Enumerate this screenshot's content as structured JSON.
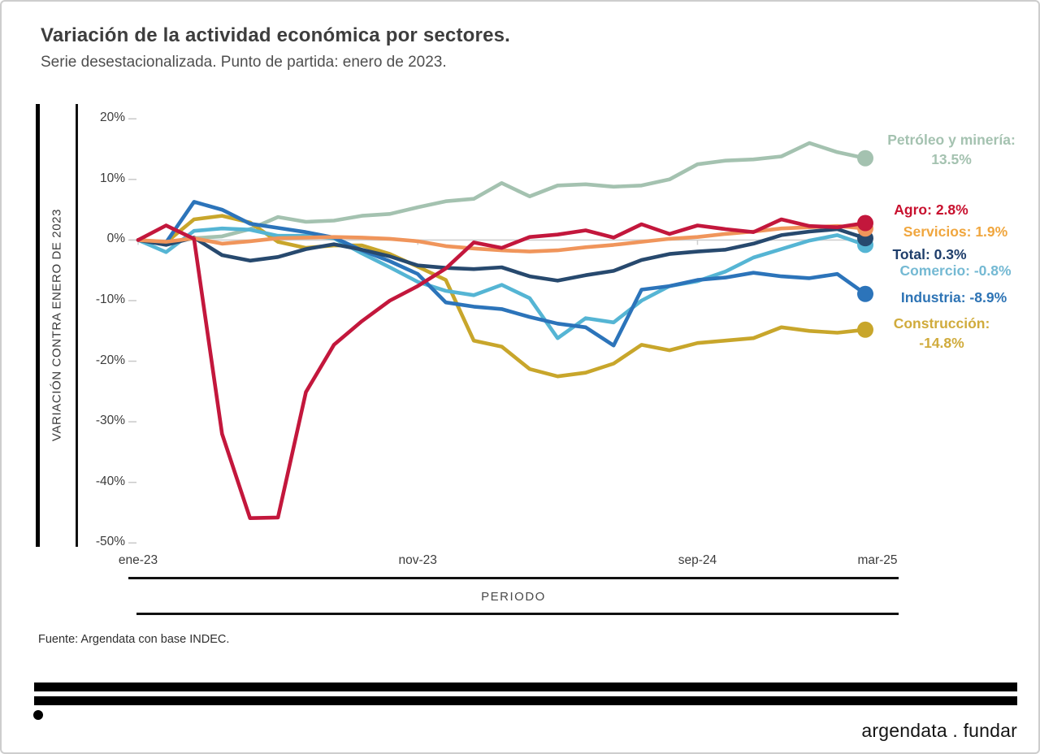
{
  "header": {
    "title": "Variación de la actividad económica por sectores.",
    "subtitle": "Serie desestacionalizada. Punto de partida: enero de 2023."
  },
  "chart_data": {
    "type": "line",
    "title": "Variación de la actividad económica por sectores.",
    "subtitle": "Serie desestacionalizada. Punto de partida: enero de 2023.",
    "ylabel": "VARIACIÓN CONTRA ENERO DE 2023",
    "xlabel": "PERIODO",
    "ylim": [
      -50,
      20
    ],
    "grid": "only zero baseline",
    "legend_position": "right end-of-line annotations",
    "y_ticks": [
      "20%",
      "10%",
      "0%",
      "-10%",
      "-20%",
      "-30%",
      "-40%",
      "-50%"
    ],
    "y_tick_values": [
      20,
      10,
      0,
      -10,
      -20,
      -30,
      -40,
      -50
    ],
    "x_tick_labels": [
      "ene-23",
      "nov-23",
      "sep-24",
      "mar-25"
    ],
    "x_tick_positions": [
      0,
      10,
      20,
      26
    ],
    "categories": [
      "ene-23",
      "feb-23",
      "mar-23",
      "abr-23",
      "may-23",
      "jun-23",
      "jul-23",
      "ago-23",
      "sep-23",
      "oct-23",
      "nov-23",
      "dic-23",
      "ene-24",
      "feb-24",
      "mar-24",
      "abr-24",
      "may-24",
      "jun-24",
      "jul-24",
      "ago-24",
      "sep-24",
      "oct-24",
      "nov-24",
      "dic-24",
      "ene-25",
      "feb-25",
      "mar-25"
    ],
    "series": [
      {
        "id": "petroleo",
        "name": "Petróleo y minería",
        "final": "13.5%",
        "color": "#A4C2B0",
        "label_color": "#A4C2B0",
        "values": [
          0,
          -0.5,
          0.3,
          0.6,
          1.8,
          3.8,
          3.0,
          3.2,
          4.0,
          4.3,
          5.4,
          6.4,
          6.8,
          9.4,
          7.2,
          9.0,
          9.2,
          8.8,
          9.0,
          10.0,
          12.5,
          13.1,
          13.3,
          13.8,
          16.0,
          14.5,
          13.5
        ]
      },
      {
        "id": "agro",
        "name": "Agro",
        "final": "2.8%",
        "color": "#C3173C",
        "label_color": "#C8102E",
        "values": [
          0,
          2.4,
          0.2,
          -32.0,
          -45.9,
          -45.8,
          -25.1,
          -17.3,
          -13.4,
          -10.0,
          -7.6,
          -4.7,
          -0.4,
          -1.3,
          0.5,
          0.9,
          1.6,
          0.4,
          2.6,
          1.0,
          2.4,
          1.8,
          1.3,
          3.4,
          2.3,
          2.1,
          2.8
        ]
      },
      {
        "id": "servicios",
        "name": "Servicios",
        "final": "1.9%",
        "color": "#F0955B",
        "label_color": "#F0A63E",
        "values": [
          0,
          -0.3,
          0.3,
          -0.6,
          -0.2,
          0.3,
          0.4,
          0.5,
          0.4,
          0.2,
          -0.2,
          -1.0,
          -1.4,
          -1.7,
          -1.9,
          -1.7,
          -1.2,
          -0.8,
          -0.3,
          0.2,
          0.5,
          1.0,
          1.4,
          1.9,
          2.1,
          2.3,
          1.9
        ]
      },
      {
        "id": "total",
        "name": "Total",
        "final": "0.3%",
        "color": "#27496E",
        "label_color": "#1F3E6B",
        "values": [
          0,
          -0.8,
          0.4,
          -2.5,
          -3.4,
          -2.8,
          -1.5,
          -0.7,
          -1.6,
          -2.7,
          -4.2,
          -4.6,
          -4.8,
          -4.5,
          -6.0,
          -6.7,
          -5.8,
          -5.1,
          -3.3,
          -2.3,
          -1.9,
          -1.6,
          -0.6,
          0.8,
          1.4,
          1.8,
          0.3
        ]
      },
      {
        "id": "comercio",
        "name": "Comercio",
        "final": "-0.8%",
        "color": "#55B5D4",
        "label_color": "#74B9D3",
        "values": [
          0,
          -2.0,
          1.5,
          1.9,
          1.7,
          0.7,
          0.7,
          0.3,
          -2.2,
          -4.5,
          -6.9,
          -8.4,
          -9.1,
          -7.4,
          -9.6,
          -16.2,
          -12.9,
          -13.6,
          -10.0,
          -7.6,
          -6.8,
          -5.2,
          -2.9,
          -1.5,
          -0.1,
          0.8,
          -0.8
        ]
      },
      {
        "id": "industria",
        "name": "Industria",
        "final": "-8.9%",
        "color": "#2C74BA",
        "label_color": "#2E74B5",
        "values": [
          0,
          -0.4,
          6.3,
          5.0,
          2.7,
          2.0,
          1.3,
          0.4,
          -1.7,
          -3.5,
          -5.6,
          -10.3,
          -11.0,
          -11.4,
          -12.7,
          -13.8,
          -14.4,
          -17.4,
          -8.2,
          -7.6,
          -6.6,
          -6.2,
          -5.4,
          -6.0,
          -6.3,
          -5.6,
          -8.9
        ]
      },
      {
        "id": "construccion",
        "name": "Construcción",
        "final": "-14.8%",
        "color": "#C8A62B",
        "label_color": "#D0AB3C",
        "values": [
          0,
          -0.4,
          3.4,
          4.0,
          2.9,
          -0.3,
          -1.3,
          -0.9,
          -0.9,
          -2.3,
          -4.4,
          -6.6,
          -16.6,
          -17.6,
          -21.3,
          -22.5,
          -21.9,
          -20.4,
          -17.3,
          -18.2,
          -17.0,
          -16.6,
          -16.2,
          -14.4,
          -15.0,
          -15.3,
          -14.8
        ]
      }
    ]
  },
  "footer": {
    "source": "Fuente: Argendata con base INDEC.",
    "logo": "argendata . fundar"
  },
  "colors": {
    "zero_line": "#cfcfcf",
    "tick": "#c9c9c9",
    "axis": "#111111",
    "title": "#3d3d3d"
  }
}
